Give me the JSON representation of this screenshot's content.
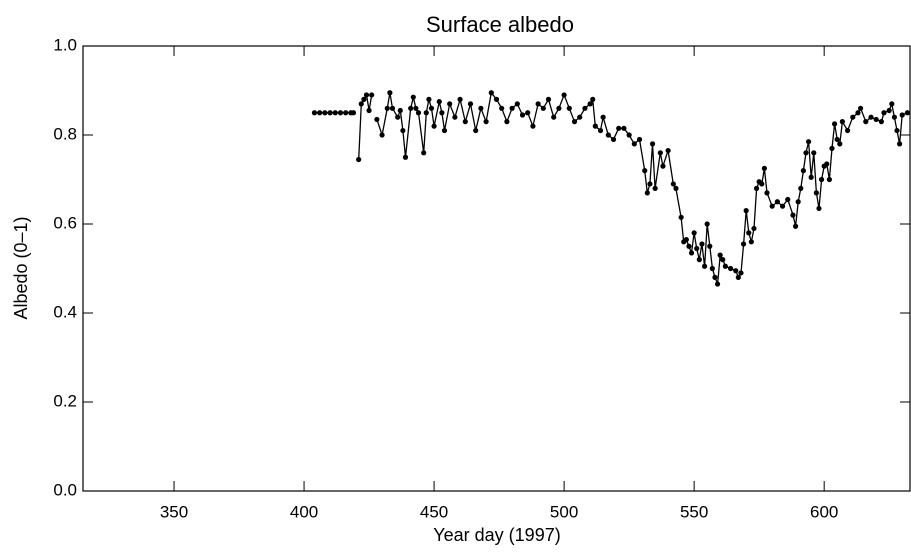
{
  "chart_data": {
    "type": "line",
    "title": "Surface albedo",
    "x_label": "Year day (1997)",
    "y_label": "Albedo (0–1)",
    "xlim": [
      315,
      633
    ],
    "xticks": [
      350,
      400,
      450,
      500,
      550,
      600
    ],
    "ylim": [
      0,
      1
    ],
    "yticks": [
      {
        "value": 0,
        "label": "0.0"
      },
      0.2,
      0.4,
      0.6,
      0.8,
      {
        "value": 1,
        "label": "1.0"
      }
    ],
    "grid": false,
    "markers": true,
    "series": [
      {
        "name": "Albedo",
        "color": "#000000",
        "x": [
          404,
          406,
          408,
          410,
          412,
          414,
          416,
          418,
          419,
          420,
          421,
          422,
          423,
          424,
          425,
          426,
          427,
          428,
          430,
          432,
          433,
          434,
          436,
          437,
          438,
          439,
          441,
          442,
          443,
          444,
          446,
          447,
          448,
          449,
          450,
          452,
          453,
          454,
          456,
          458,
          460,
          462,
          464,
          466,
          468,
          470,
          472,
          474,
          476,
          478,
          480,
          482,
          484,
          486,
          488,
          490,
          492,
          494,
          496,
          498,
          500,
          502,
          504,
          506,
          508,
          510,
          511,
          512,
          514,
          515,
          517,
          519,
          521,
          523,
          525,
          527,
          529,
          531,
          532,
          533,
          534,
          535,
          537,
          538,
          540,
          542,
          543,
          545,
          546,
          547,
          548,
          549,
          550,
          551,
          552,
          553,
          554,
          555,
          556,
          557,
          558,
          559,
          560,
          561,
          562,
          564,
          566,
          567,
          568,
          569,
          570,
          571,
          572,
          573,
          574,
          575,
          576,
          577,
          578,
          580,
          582,
          584,
          586,
          588,
          589,
          590,
          591,
          592,
          593,
          594,
          595,
          596,
          597,
          598,
          599,
          600,
          601,
          602,
          603,
          604,
          605,
          606,
          607,
          609,
          611,
          613,
          614,
          616,
          618,
          620,
          622,
          623,
          625,
          626,
          627,
          628,
          629,
          630,
          632
        ],
        "values": [
          0.85,
          0.85,
          0.85,
          0.85,
          0.85,
          0.85,
          0.85,
          0.85,
          0.85,
          null,
          0.745,
          0.87,
          0.88,
          0.89,
          0.855,
          0.89,
          null,
          0.835,
          0.8,
          0.86,
          0.895,
          0.86,
          0.84,
          0.855,
          0.81,
          0.75,
          0.86,
          0.885,
          0.86,
          0.85,
          0.76,
          0.85,
          0.88,
          0.86,
          0.82,
          0.875,
          0.85,
          0.81,
          0.87,
          0.84,
          0.88,
          0.83,
          0.87,
          0.81,
          0.86,
          0.83,
          0.895,
          0.88,
          0.86,
          0.83,
          0.86,
          0.87,
          0.845,
          0.85,
          0.82,
          0.87,
          0.86,
          0.88,
          0.84,
          0.86,
          0.89,
          0.86,
          0.83,
          0.84,
          0.86,
          0.87,
          0.88,
          0.82,
          0.81,
          0.84,
          0.8,
          0.79,
          0.815,
          0.815,
          0.8,
          0.78,
          0.79,
          0.72,
          0.67,
          0.69,
          0.78,
          0.68,
          0.76,
          0.73,
          0.765,
          0.69,
          0.68,
          0.615,
          0.56,
          0.565,
          0.55,
          0.535,
          0.58,
          0.545,
          0.52,
          0.555,
          0.505,
          0.6,
          0.55,
          0.5,
          0.48,
          0.465,
          0.53,
          0.52,
          0.505,
          0.5,
          0.495,
          0.48,
          0.49,
          0.555,
          0.63,
          0.58,
          0.56,
          0.59,
          0.68,
          0.695,
          0.69,
          0.725,
          0.67,
          0.64,
          0.65,
          0.64,
          0.655,
          0.62,
          0.595,
          0.65,
          0.68,
          0.72,
          0.76,
          0.785,
          0.705,
          0.76,
          0.67,
          0.635,
          0.7,
          0.73,
          0.735,
          0.7,
          0.77,
          0.825,
          0.79,
          0.78,
          0.83,
          0.81,
          0.84,
          0.85,
          0.86,
          0.83,
          0.84,
          0.835,
          0.83,
          0.85,
          0.855,
          0.87,
          0.84,
          0.81,
          0.78,
          0.845,
          0.85
        ]
      }
    ]
  }
}
